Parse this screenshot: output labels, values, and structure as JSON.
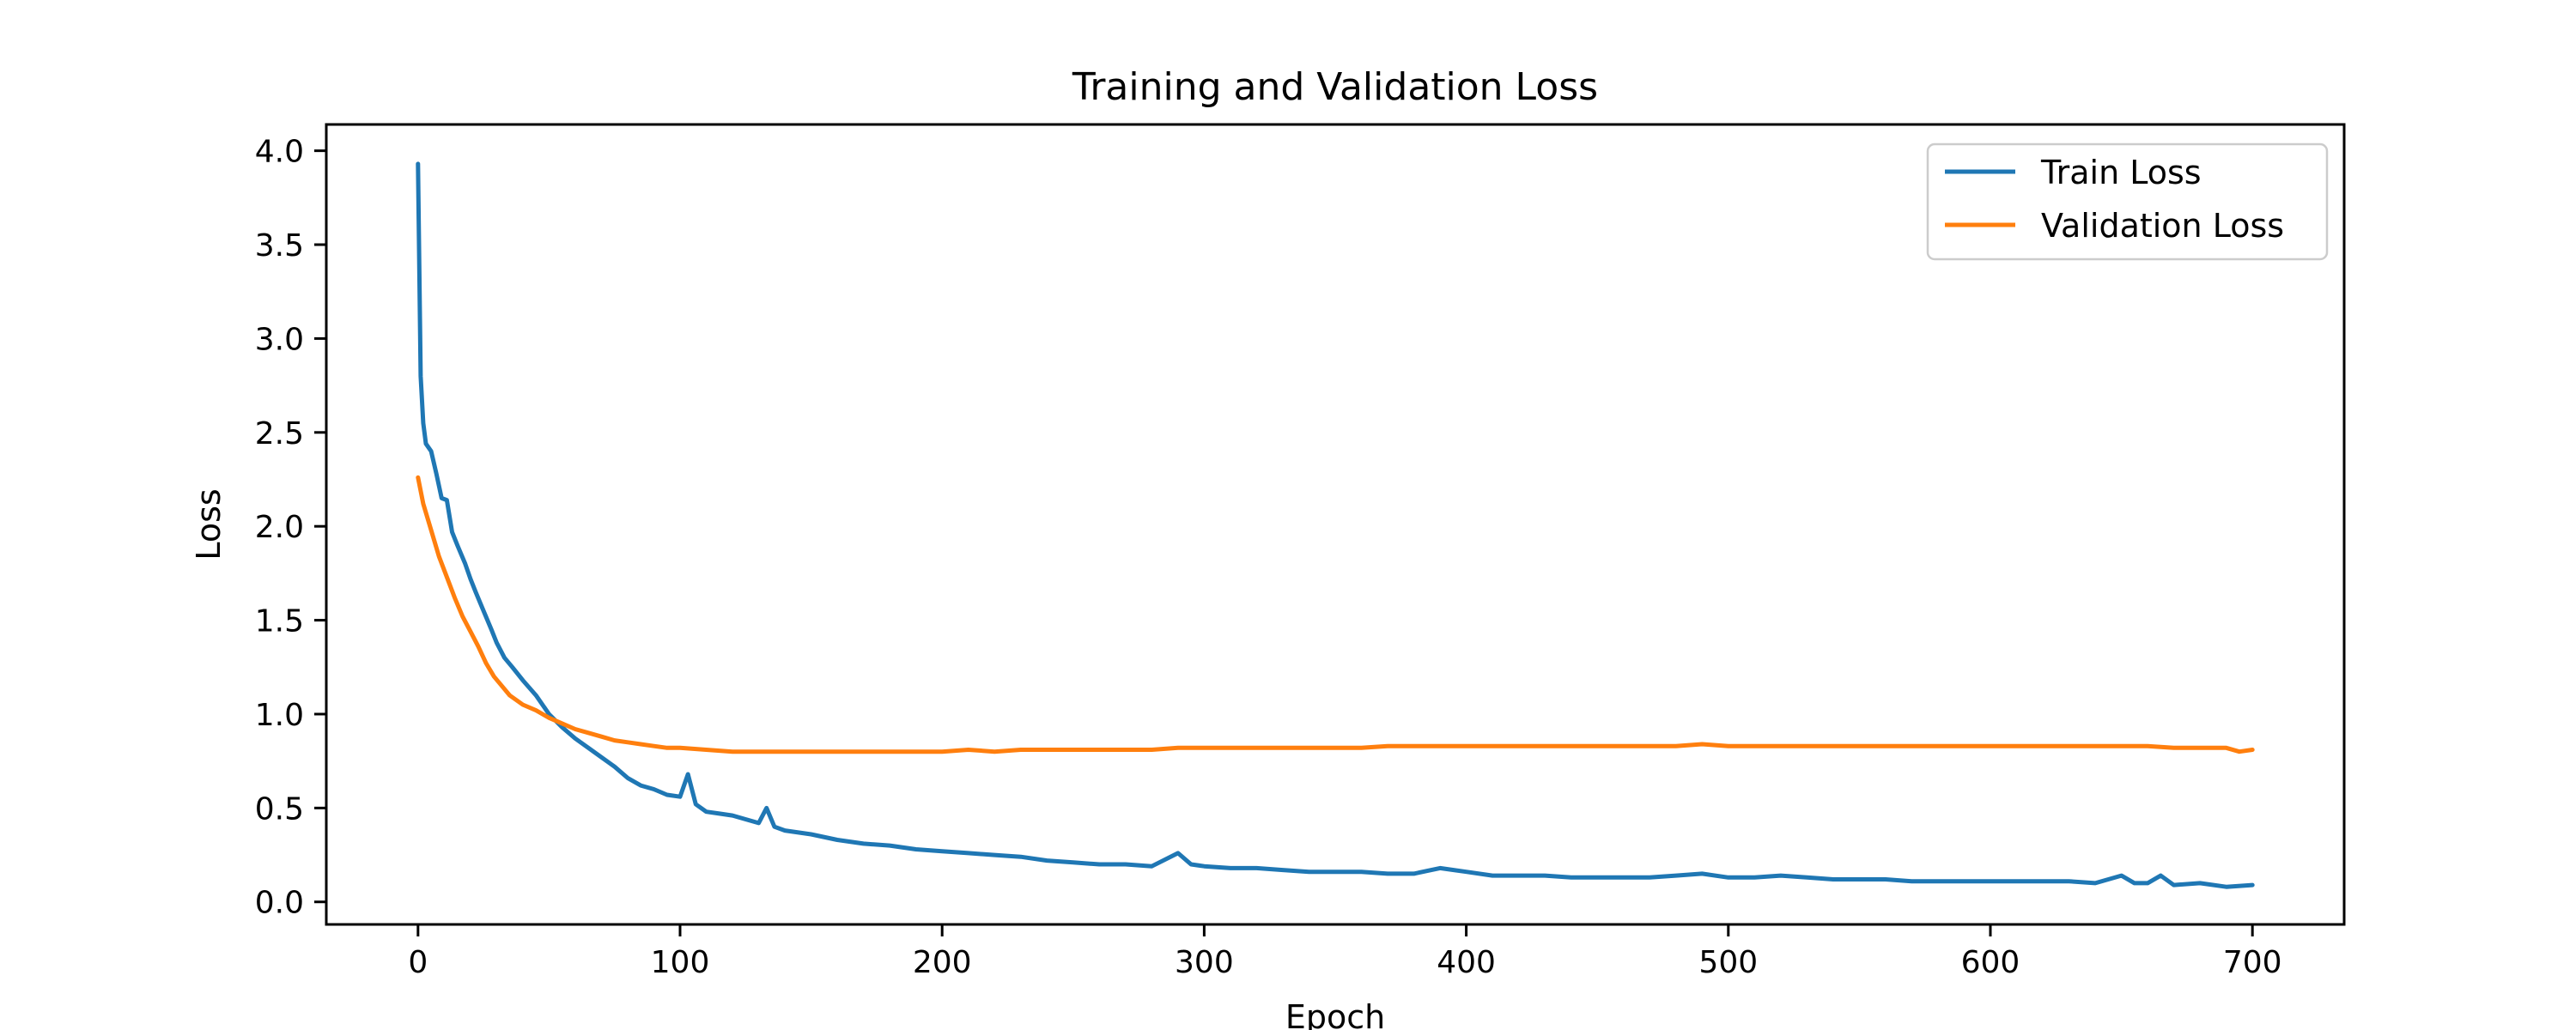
{
  "chart_data": {
    "type": "line",
    "title": "Training and Validation Loss",
    "xlabel": "Epoch",
    "ylabel": "Loss",
    "xlim": [
      -35,
      735
    ],
    "ylim": [
      -0.12,
      4.14
    ],
    "xticks": [
      0,
      100,
      200,
      300,
      400,
      500,
      600,
      700
    ],
    "yticks": [
      0.0,
      0.5,
      1.0,
      1.5,
      2.0,
      2.5,
      3.0,
      3.5,
      4.0
    ],
    "ytick_labels": [
      "0.0",
      "0.5",
      "1.0",
      "1.5",
      "2.0",
      "2.5",
      "3.0",
      "3.5",
      "4.0"
    ],
    "grid": false,
    "legend_position": "top-right",
    "series": [
      {
        "name": "Train Loss",
        "color": "#1f77b4",
        "points": [
          [
            0,
            3.93
          ],
          [
            1,
            2.8
          ],
          [
            2,
            2.55
          ],
          [
            3,
            2.44
          ],
          [
            5,
            2.4
          ],
          [
            7,
            2.28
          ],
          [
            9,
            2.15
          ],
          [
            11,
            2.14
          ],
          [
            13,
            1.97
          ],
          [
            15,
            1.9
          ],
          [
            18,
            1.8
          ],
          [
            20,
            1.72
          ],
          [
            22,
            1.65
          ],
          [
            25,
            1.55
          ],
          [
            28,
            1.45
          ],
          [
            30,
            1.38
          ],
          [
            33,
            1.3
          ],
          [
            36,
            1.25
          ],
          [
            40,
            1.18
          ],
          [
            45,
            1.1
          ],
          [
            50,
            1.0
          ],
          [
            55,
            0.93
          ],
          [
            60,
            0.87
          ],
          [
            65,
            0.82
          ],
          [
            70,
            0.77
          ],
          [
            75,
            0.72
          ],
          [
            80,
            0.66
          ],
          [
            85,
            0.62
          ],
          [
            90,
            0.6
          ],
          [
            95,
            0.57
          ],
          [
            100,
            0.56
          ],
          [
            103,
            0.68
          ],
          [
            106,
            0.52
          ],
          [
            110,
            0.48
          ],
          [
            115,
            0.47
          ],
          [
            120,
            0.46
          ],
          [
            125,
            0.44
          ],
          [
            130,
            0.42
          ],
          [
            133,
            0.5
          ],
          [
            136,
            0.4
          ],
          [
            140,
            0.38
          ],
          [
            150,
            0.36
          ],
          [
            160,
            0.33
          ],
          [
            170,
            0.31
          ],
          [
            180,
            0.3
          ],
          [
            190,
            0.28
          ],
          [
            200,
            0.27
          ],
          [
            210,
            0.26
          ],
          [
            220,
            0.25
          ],
          [
            230,
            0.24
          ],
          [
            240,
            0.22
          ],
          [
            250,
            0.21
          ],
          [
            260,
            0.2
          ],
          [
            270,
            0.2
          ],
          [
            280,
            0.19
          ],
          [
            290,
            0.26
          ],
          [
            295,
            0.2
          ],
          [
            300,
            0.19
          ],
          [
            310,
            0.18
          ],
          [
            320,
            0.18
          ],
          [
            330,
            0.17
          ],
          [
            340,
            0.16
          ],
          [
            350,
            0.16
          ],
          [
            360,
            0.16
          ],
          [
            370,
            0.15
          ],
          [
            380,
            0.15
          ],
          [
            390,
            0.18
          ],
          [
            400,
            0.16
          ],
          [
            410,
            0.14
          ],
          [
            420,
            0.14
          ],
          [
            430,
            0.14
          ],
          [
            440,
            0.13
          ],
          [
            450,
            0.13
          ],
          [
            460,
            0.13
          ],
          [
            470,
            0.13
          ],
          [
            480,
            0.14
          ],
          [
            490,
            0.15
          ],
          [
            500,
            0.13
          ],
          [
            510,
            0.13
          ],
          [
            520,
            0.14
          ],
          [
            530,
            0.13
          ],
          [
            540,
            0.12
          ],
          [
            550,
            0.12
          ],
          [
            560,
            0.12
          ],
          [
            570,
            0.11
          ],
          [
            580,
            0.11
          ],
          [
            590,
            0.11
          ],
          [
            600,
            0.11
          ],
          [
            610,
            0.11
          ],
          [
            620,
            0.11
          ],
          [
            630,
            0.11
          ],
          [
            640,
            0.1
          ],
          [
            650,
            0.14
          ],
          [
            655,
            0.1
          ],
          [
            660,
            0.1
          ],
          [
            665,
            0.14
          ],
          [
            670,
            0.09
          ],
          [
            680,
            0.1
          ],
          [
            690,
            0.08
          ],
          [
            700,
            0.09
          ]
        ]
      },
      {
        "name": "Validation Loss",
        "color": "#ff7f0e",
        "points": [
          [
            0,
            2.26
          ],
          [
            2,
            2.12
          ],
          [
            5,
            1.98
          ],
          [
            8,
            1.84
          ],
          [
            11,
            1.73
          ],
          [
            14,
            1.62
          ],
          [
            17,
            1.52
          ],
          [
            20,
            1.44
          ],
          [
            23,
            1.36
          ],
          [
            26,
            1.27
          ],
          [
            29,
            1.2
          ],
          [
            32,
            1.15
          ],
          [
            35,
            1.1
          ],
          [
            40,
            1.05
          ],
          [
            45,
            1.02
          ],
          [
            50,
            0.98
          ],
          [
            55,
            0.95
          ],
          [
            60,
            0.92
          ],
          [
            65,
            0.9
          ],
          [
            70,
            0.88
          ],
          [
            75,
            0.86
          ],
          [
            80,
            0.85
          ],
          [
            85,
            0.84
          ],
          [
            90,
            0.83
          ],
          [
            95,
            0.82
          ],
          [
            100,
            0.82
          ],
          [
            110,
            0.81
          ],
          [
            120,
            0.8
          ],
          [
            130,
            0.8
          ],
          [
            140,
            0.8
          ],
          [
            150,
            0.8
          ],
          [
            160,
            0.8
          ],
          [
            170,
            0.8
          ],
          [
            180,
            0.8
          ],
          [
            190,
            0.8
          ],
          [
            200,
            0.8
          ],
          [
            210,
            0.81
          ],
          [
            220,
            0.8
          ],
          [
            230,
            0.81
          ],
          [
            240,
            0.81
          ],
          [
            250,
            0.81
          ],
          [
            260,
            0.81
          ],
          [
            270,
            0.81
          ],
          [
            280,
            0.81
          ],
          [
            290,
            0.82
          ],
          [
            300,
            0.82
          ],
          [
            310,
            0.82
          ],
          [
            320,
            0.82
          ],
          [
            330,
            0.82
          ],
          [
            340,
            0.82
          ],
          [
            350,
            0.82
          ],
          [
            360,
            0.82
          ],
          [
            370,
            0.83
          ],
          [
            380,
            0.83
          ],
          [
            390,
            0.83
          ],
          [
            400,
            0.83
          ],
          [
            410,
            0.83
          ],
          [
            420,
            0.83
          ],
          [
            430,
            0.83
          ],
          [
            440,
            0.83
          ],
          [
            450,
            0.83
          ],
          [
            460,
            0.83
          ],
          [
            470,
            0.83
          ],
          [
            480,
            0.83
          ],
          [
            490,
            0.84
          ],
          [
            500,
            0.83
          ],
          [
            510,
            0.83
          ],
          [
            520,
            0.83
          ],
          [
            530,
            0.83
          ],
          [
            540,
            0.83
          ],
          [
            550,
            0.83
          ],
          [
            560,
            0.83
          ],
          [
            570,
            0.83
          ],
          [
            580,
            0.83
          ],
          [
            590,
            0.83
          ],
          [
            600,
            0.83
          ],
          [
            610,
            0.83
          ],
          [
            620,
            0.83
          ],
          [
            630,
            0.83
          ],
          [
            640,
            0.83
          ],
          [
            650,
            0.83
          ],
          [
            660,
            0.83
          ],
          [
            670,
            0.82
          ],
          [
            680,
            0.82
          ],
          [
            690,
            0.82
          ],
          [
            695,
            0.8
          ],
          [
            700,
            0.81
          ]
        ]
      }
    ]
  }
}
